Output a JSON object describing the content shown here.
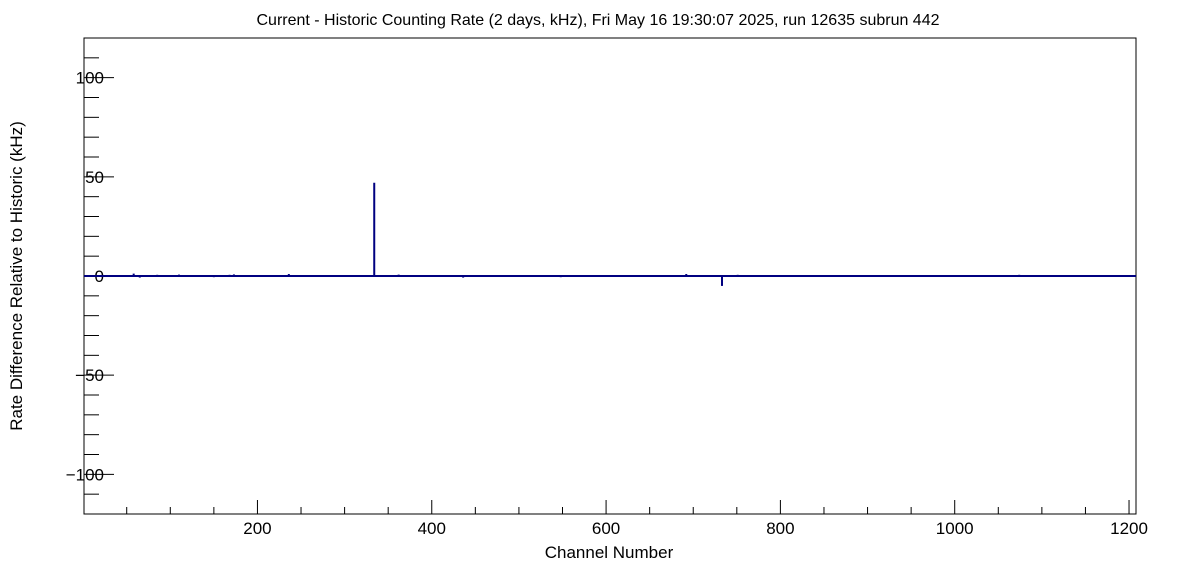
{
  "chart_data": {
    "type": "bar",
    "title": "Current - Historic Counting Rate (2 days, kHz), Fri May 16 19:30:07 2025, run 12635 subrun 442",
    "xlabel": "Channel Number",
    "ylabel": "Rate Difference Relative to Historic (kHz)",
    "xlim": [
      1,
      1208
    ],
    "ylim": [
      -120,
      120
    ],
    "x_ticks": [
      200,
      400,
      600,
      800,
      1000,
      1200
    ],
    "y_ticks": [
      -100,
      -50,
      0,
      50,
      100
    ],
    "grid": false,
    "legend": "none",
    "colors": {
      "series": "#000080",
      "axes": "#000000",
      "background": "#ffffff"
    },
    "series": [
      {
        "x": [
          58,
          65,
          85,
          98,
          110,
          150,
          168,
          173,
          187,
          236,
          334,
          362,
          436,
          548,
          692,
          733,
          751,
          814,
          1038,
          1074,
          1136
        ],
        "values": [
          1.2,
          -0.8,
          0.6,
          0.5,
          0.7,
          -0.6,
          0.6,
          0.8,
          0.5,
          1.0,
          47,
          0.7,
          -0.8,
          -0.6,
          1.0,
          -5.0,
          0.6,
          0.5,
          0.5,
          0.6,
          -0.5
        ]
      }
    ]
  }
}
